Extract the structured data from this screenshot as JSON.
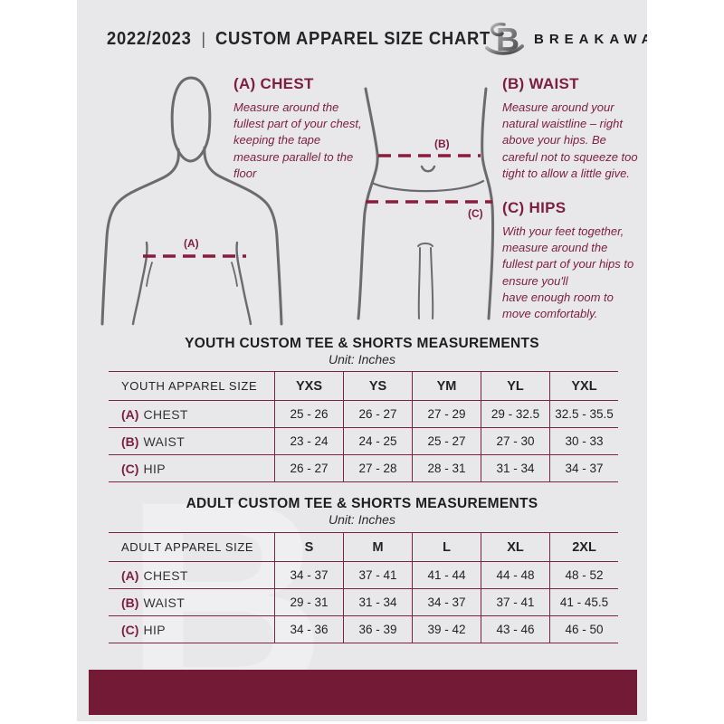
{
  "header": {
    "year": "2022/2023",
    "divider": "|",
    "title": "CUSTOM APPAREL SIZE CHART",
    "brand": "BREAKAWAY",
    "logo_letter": "B"
  },
  "guide": {
    "chest": {
      "heading": "(A) CHEST",
      "description": "Measure around the fullest part of your chest, keeping the tape measure parallel to the floor",
      "marker": "(A)"
    },
    "waist": {
      "heading": "(B) WAIST",
      "description": "Measure around your natural waistline – right above your hips. Be careful not to squeeze too tight to allow a little give.",
      "marker": "(B)"
    },
    "hips": {
      "heading": "(C) HIPS",
      "description": "With your feet together, measure around the fullest part of your hips to ensure you'll\nhave enough room to move comfortably.",
      "marker": "(C)"
    }
  },
  "youth_table": {
    "title": "YOUTH CUSTOM TEE & SHORTS MEASUREMENTS",
    "unit": "Unit: Inches",
    "columns": [
      "YOUTH APPAREL SIZE",
      "YXS",
      "YS",
      "YM",
      "YL",
      "YXL"
    ],
    "rows": [
      {
        "prefix": "(A)",
        "label": "CHEST",
        "values": [
          "25 - 26",
          "26 - 27",
          "27 - 29",
          "29 - 32.5",
          "32.5 - 35.5"
        ]
      },
      {
        "prefix": "(B)",
        "label": "WAIST",
        "values": [
          "23 - 24",
          "24 - 25",
          "25 - 27",
          "27 - 30",
          "30 - 33"
        ]
      },
      {
        "prefix": "(C)",
        "label": "HIP",
        "values": [
          "26 - 27",
          "27 - 28",
          "28 - 31",
          "31 - 34",
          "34 - 37"
        ]
      }
    ]
  },
  "adult_table": {
    "title": "ADULT CUSTOM TEE & SHORTS MEASUREMENTS",
    "unit": "Unit: Inches",
    "columns": [
      "ADULT APPAREL SIZE",
      "S",
      "M",
      "L",
      "XL",
      "2XL"
    ],
    "rows": [
      {
        "prefix": "(A)",
        "label": "CHEST",
        "values": [
          "34 - 37",
          "37 - 41",
          "41 - 44",
          "44 - 48",
          "48 - 52"
        ]
      },
      {
        "prefix": "(B)",
        "label": "WAIST",
        "values": [
          "29 - 31",
          "31 - 34",
          "34 - 37",
          "37 - 41",
          "41 - 45.5"
        ]
      },
      {
        "prefix": "(C)",
        "label": "HIP",
        "values": [
          "34 - 36",
          "36 - 39",
          "39 - 42",
          "43 - 46",
          "46 - 50"
        ]
      }
    ]
  },
  "watermark_letter": "B",
  "colors": {
    "maroon_text": "#7D1E3E",
    "maroon_line": "#8A1C3C",
    "footer_maroon": "#731B36",
    "figure_gray": "#6B6B6D",
    "page_bg": "#E8E8EA"
  }
}
